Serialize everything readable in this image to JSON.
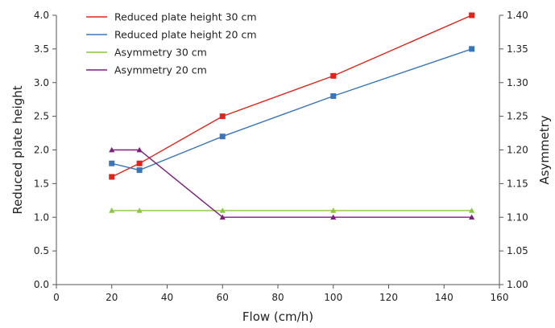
{
  "chart_data": {
    "type": "line",
    "title": "",
    "xlabel": "Flow (cm/h)",
    "ylabel_left": "Reduced plate height",
    "ylabel_right": "Asymmetry",
    "xlim": [
      0,
      160
    ],
    "xticks": [
      0,
      20,
      40,
      60,
      80,
      100,
      120,
      140,
      160
    ],
    "ylim_left": [
      0.0,
      4.0
    ],
    "yticks_left": [
      "0.0",
      "0.5",
      "1.0",
      "1.5",
      "2.0",
      "2.5",
      "3.0",
      "3.5",
      "4.0"
    ],
    "ylim_right": [
      1.0,
      1.4
    ],
    "yticks_right": [
      "1.00",
      "1.05",
      "1.10",
      "1.15",
      "1.20",
      "1.25",
      "1.30",
      "1.35",
      "1.40"
    ],
    "grid": false,
    "legend_position": "top-left",
    "series": [
      {
        "name": "Reduced plate height 30 cm",
        "axis": "left",
        "color": "#e2231a",
        "marker": "square",
        "x": [
          20,
          30,
          60,
          100,
          150
        ],
        "y": [
          1.6,
          1.8,
          2.5,
          3.1,
          4.0
        ]
      },
      {
        "name": "Reduced plate height 20 cm",
        "axis": "left",
        "color": "#3a75b8",
        "marker": "square",
        "x": [
          20,
          30,
          60,
          100,
          150
        ],
        "y": [
          1.8,
          1.7,
          2.2,
          2.8,
          3.5
        ]
      },
      {
        "name": "Asymmetry 30 cm",
        "axis": "right",
        "color": "#8cc63f",
        "marker": "triangle",
        "x": [
          20,
          30,
          60,
          100,
          150
        ],
        "y": [
          1.11,
          1.11,
          1.11,
          1.11,
          1.11
        ]
      },
      {
        "name": "Asymmetry 20 cm",
        "axis": "right",
        "color": "#7b1f7a",
        "marker": "triangle",
        "x": [
          20,
          30,
          60,
          100,
          150
        ],
        "y": [
          1.2,
          1.2,
          1.1,
          1.1,
          1.1
        ]
      }
    ]
  }
}
